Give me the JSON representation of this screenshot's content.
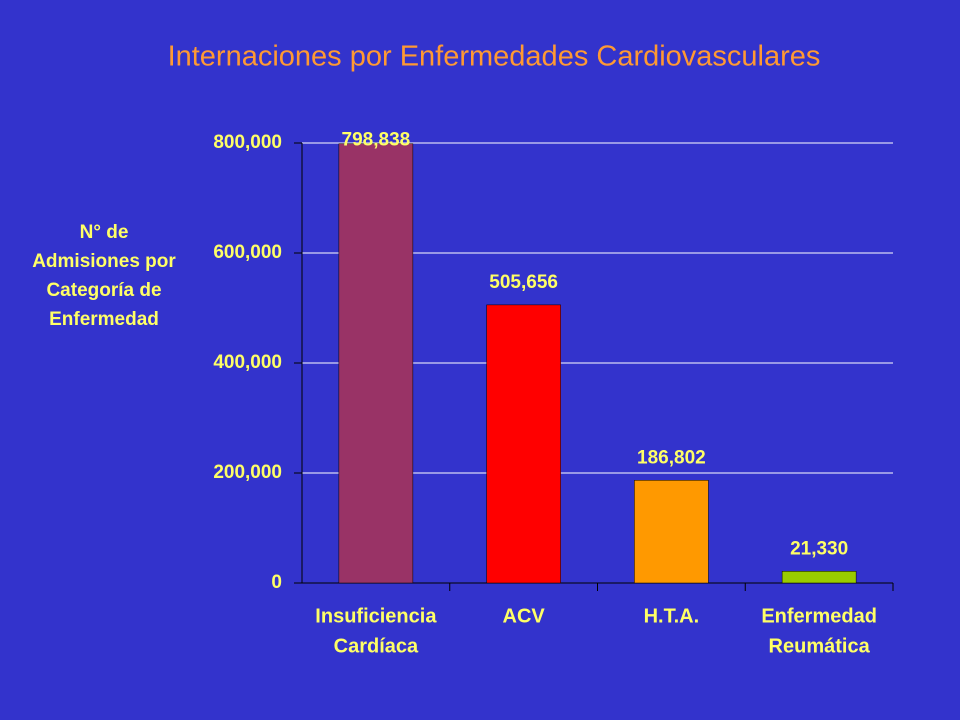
{
  "chart_data": {
    "type": "bar",
    "title": "Internaciones por Enfermedades Cardiovasculares",
    "ylabel": [
      "N° de",
      "Admisiones por",
      "Categoría de",
      "Enfermedad"
    ],
    "categories": [
      [
        "Insuficiencia",
        "Cardíaca"
      ],
      [
        "ACV"
      ],
      [
        "H.T.A."
      ],
      [
        "Enfermedad",
        "Reumática"
      ]
    ],
    "values": [
      798838,
      505656,
      186802,
      21330
    ],
    "value_labels": [
      "798,838",
      "505,656",
      "186,802",
      "21,330"
    ],
    "colors": [
      "#993366",
      "#ff0000",
      "#ff9900",
      "#99cc00"
    ],
    "ylim": [
      0,
      800000
    ],
    "yticks": [
      0,
      {
        "value": 200000,
        "label": "200,000"
      },
      {
        "value": 400000,
        "label": "400,000"
      },
      {
        "value": 600000,
        "label": "600,000"
      },
      {
        "value": 800000,
        "label": "800,000"
      }
    ],
    "grid": true
  }
}
